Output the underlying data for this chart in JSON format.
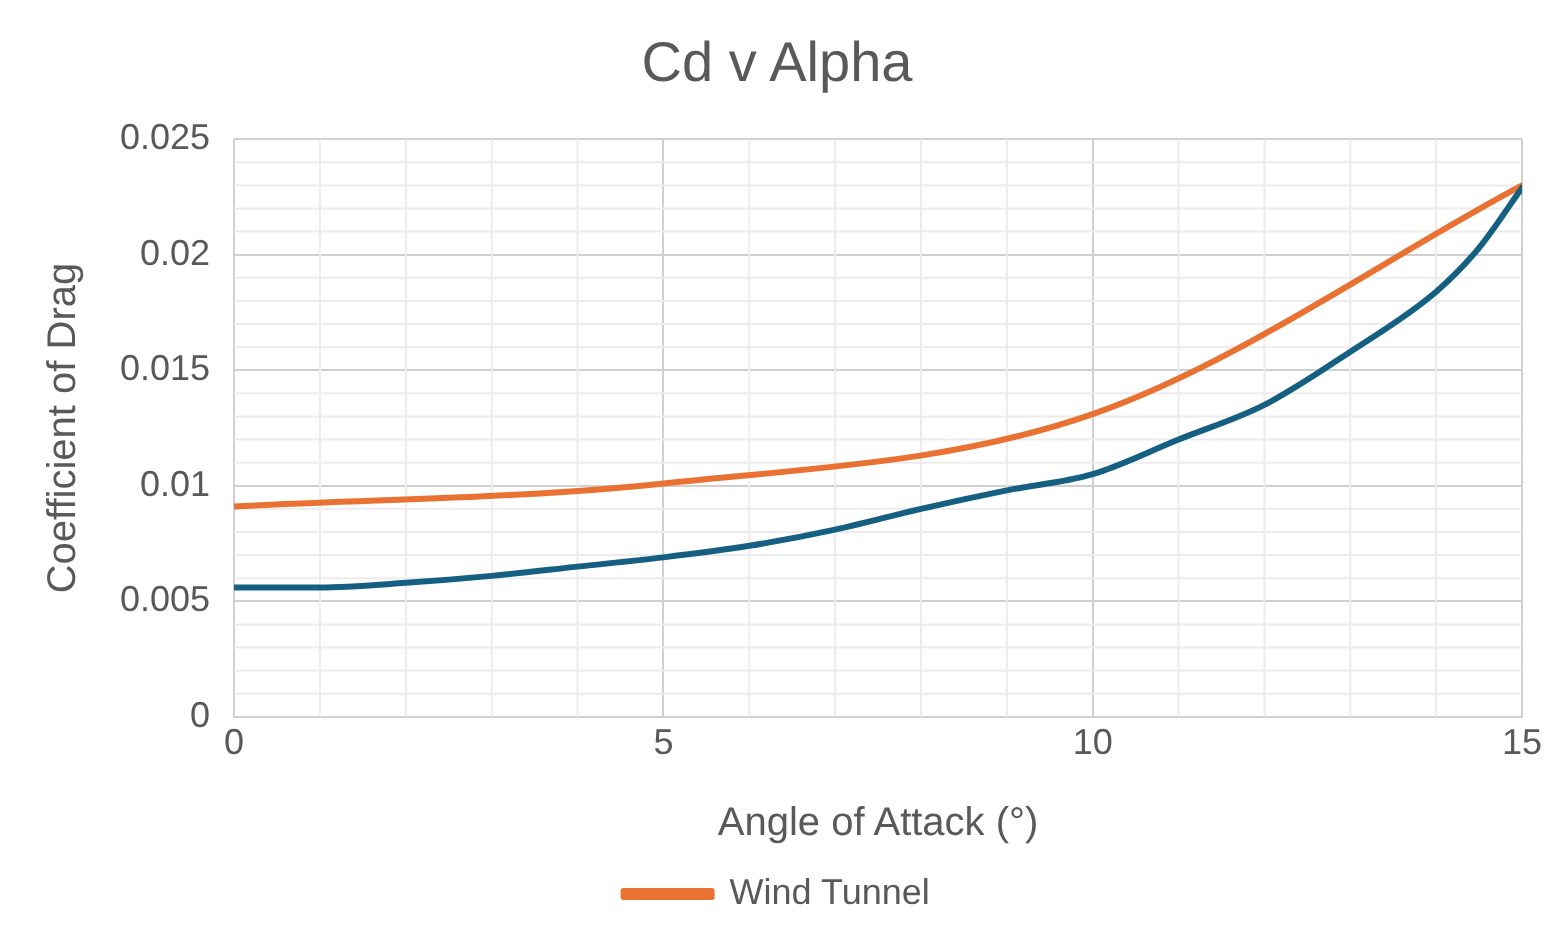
{
  "chart_data": {
    "type": "line",
    "title": "Cd v Alpha",
    "xlabel": "Angle of Attack (°)",
    "ylabel": "Coefficient of Drag",
    "xlim": [
      0,
      15
    ],
    "xticks": [
      0,
      5,
      10,
      15
    ],
    "ylim": [
      0,
      0.025
    ],
    "yticks": [
      0,
      0.005,
      0.01,
      0.015,
      0.02,
      0.025
    ],
    "grid": true,
    "legend": "bottom",
    "marker": "none",
    "line_style": "solid",
    "series": [
      {
        "color": "#156082",
        "x": [
          0,
          1,
          2,
          3,
          4,
          5,
          6,
          7,
          8,
          9,
          10,
          11,
          12,
          13,
          14,
          14.5,
          15
        ],
        "values": [
          0.0056,
          0.0056,
          0.0058,
          0.0061,
          0.0065,
          0.0069,
          0.0074,
          0.0081,
          0.009,
          0.0098,
          0.0105,
          0.012,
          0.0135,
          0.0158,
          0.0184,
          0.0203,
          0.0229
        ]
      },
      {
        "name": "Wind Tunnel",
        "color": "#e97132",
        "x": [
          0,
          5,
          10,
          15
        ],
        "values": [
          0.0091,
          0.0101,
          0.0131,
          0.023
        ]
      }
    ]
  }
}
